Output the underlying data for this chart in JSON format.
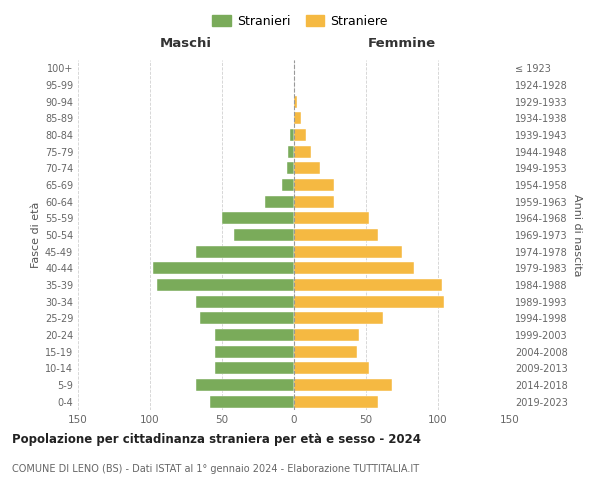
{
  "age_groups": [
    "0-4",
    "5-9",
    "10-14",
    "15-19",
    "20-24",
    "25-29",
    "30-34",
    "35-39",
    "40-44",
    "45-49",
    "50-54",
    "55-59",
    "60-64",
    "65-69",
    "70-74",
    "75-79",
    "80-84",
    "85-89",
    "90-94",
    "95-99",
    "100+"
  ],
  "birth_years": [
    "2019-2023",
    "2014-2018",
    "2009-2013",
    "2004-2008",
    "1999-2003",
    "1994-1998",
    "1989-1993",
    "1984-1988",
    "1979-1983",
    "1974-1978",
    "1969-1973",
    "1964-1968",
    "1959-1963",
    "1954-1958",
    "1949-1953",
    "1944-1948",
    "1939-1943",
    "1934-1938",
    "1929-1933",
    "1924-1928",
    "≤ 1923"
  ],
  "maschi": [
    58,
    68,
    55,
    55,
    55,
    65,
    68,
    95,
    98,
    68,
    42,
    50,
    20,
    8,
    5,
    4,
    3,
    0,
    0,
    0,
    0
  ],
  "femmine": [
    58,
    68,
    52,
    44,
    45,
    62,
    104,
    103,
    83,
    75,
    58,
    52,
    28,
    28,
    18,
    12,
    8,
    5,
    2,
    0,
    0
  ],
  "color_maschi": "#7aab5a",
  "color_femmine": "#f5b942",
  "title": "Popolazione per cittadinanza straniera per età e sesso - 2024",
  "subtitle": "COMUNE DI LENO (BS) - Dati ISTAT al 1° gennaio 2024 - Elaborazione TUTTITALIA.IT",
  "header_left": "Maschi",
  "header_right": "Femmine",
  "ylabel_left": "Fasce di età",
  "ylabel_right": "Anni di nascita",
  "legend_maschi": "Stranieri",
  "legend_femmine": "Straniere",
  "xlim": 150,
  "background_color": "#ffffff",
  "grid_color": "#cccccc"
}
